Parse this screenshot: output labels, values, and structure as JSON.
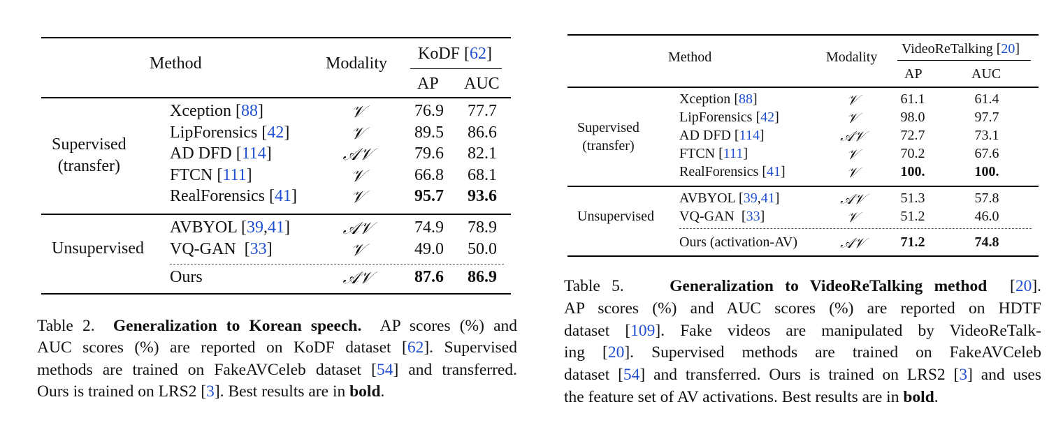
{
  "table2": {
    "header": {
      "method": "Method",
      "modality": "Modality",
      "dataset": "KoDF",
      "dataset_cite": "62",
      "ap": "AP",
      "auc": "AUC"
    },
    "groups": [
      {
        "label_line1": "Supervised",
        "label_line2": "(transfer)",
        "rows": [
          {
            "method": "Xception",
            "cites": "88",
            "modality": "V",
            "ap": "76.9",
            "auc": "77.7",
            "bold": false
          },
          {
            "method": "LipForensics",
            "cites": "42",
            "modality": "V",
            "ap": "89.5",
            "auc": "86.6",
            "bold": false
          },
          {
            "method": "AD DFD",
            "cites": "114",
            "modality": "AV",
            "ap": "79.6",
            "auc": "82.1",
            "bold": false
          },
          {
            "method": "FTCN",
            "cites": "111",
            "modality": "V",
            "ap": "66.8",
            "auc": "68.1",
            "bold": false
          },
          {
            "method": "RealForensics",
            "cites": "41",
            "modality": "V",
            "ap": "95.7",
            "auc": "93.6",
            "bold": true
          }
        ]
      },
      {
        "label_line1": "Unsupervised",
        "rows": [
          {
            "method": "AVBYOL",
            "cites": "39,41",
            "modality": "AV",
            "ap": "74.9",
            "auc": "78.9",
            "bold": false
          },
          {
            "method": "VQ-GAN",
            "cites": "33",
            "modality": "V",
            "ap": "49.0",
            "auc": "50.0",
            "bold": false
          },
          {
            "method": "Ours",
            "cites": "",
            "modality": "AV",
            "ap": "87.6",
            "auc": "86.9",
            "bold": true
          }
        ]
      }
    ],
    "caption": {
      "prefix": "Table 2.",
      "title": "Generalization to Korean speech.",
      "line1_tail": "AP scores (%) and",
      "line2": "AUC scores (%) are reported on KoDF dataset [",
      "line2_cite": "62",
      "line2_tail": "]. Supervised",
      "line3": "methods are trained on FakeAVCeleb dataset [",
      "line3_cite": "54",
      "line3_tail": "] and transferred.",
      "line4": "Ours is trained on LRS2 [",
      "line4_cite": "3",
      "line4_mid": "]. Best results are in ",
      "line4_bold": "bold",
      "line4_end": "."
    }
  },
  "table5": {
    "header": {
      "method": "Method",
      "modality": "Modality",
      "dataset": "VideoReTalking",
      "dataset_cite": "20",
      "ap": "AP",
      "auc": "AUC"
    },
    "groups": [
      {
        "label_line1": "Supervised",
        "label_line2": "(transfer)",
        "rows": [
          {
            "method": "Xception",
            "cites": "88",
            "modality": "V",
            "ap": "61.1",
            "auc": "61.4",
            "bold": false
          },
          {
            "method": "LipForensics",
            "cites": "42",
            "modality": "V",
            "ap": "98.0",
            "auc": "97.7",
            "bold": false
          },
          {
            "method": "AD DFD",
            "cites": "114",
            "modality": "AV",
            "ap": "72.7",
            "auc": "73.1",
            "bold": false
          },
          {
            "method": "FTCN",
            "cites": "111",
            "modality": "V",
            "ap": "70.2",
            "auc": "67.6",
            "bold": false
          },
          {
            "method": "RealForensics",
            "cites": "41",
            "modality": "V",
            "ap": "100.",
            "auc": "100.",
            "bold": true
          }
        ]
      },
      {
        "label_line1": "Unsupervised",
        "rows": [
          {
            "method": "AVBYOL",
            "cites": "39,41",
            "modality": "AV",
            "ap": "51.3",
            "auc": "57.8",
            "bold": false
          },
          {
            "method": "VQ-GAN",
            "cites": "33",
            "modality": "V",
            "ap": "51.2",
            "auc": "46.0",
            "bold": false
          },
          {
            "method": "Ours (activation-AV)",
            "cites": "",
            "modality": "AV",
            "ap": "71.2",
            "auc": "74.8",
            "bold": true
          }
        ]
      }
    ],
    "caption": {
      "prefix": "Table 5.",
      "title": "Generalization to VideoReTalking method",
      "title_cite": "20",
      "line2": "AP scores (%) and AUC scores (%) are reported on HDTF",
      "line3": "dataset [",
      "line3_cite": "109",
      "line3_tail": "]. Fake videos are manipulated by VideoReTalk-",
      "line4": "ing [",
      "line4_cite": "20",
      "line4_tail": "]. Supervised methods are trained on FakeAVCeleb",
      "line5": "dataset [",
      "line5_cite": "54",
      "line5_mid": "] and transferred. Ours is trained on LRS2 [",
      "line5_cite2": "3",
      "line5_tail": "] and uses",
      "line6": "the feature set of AV activations. Best results are in ",
      "line6_bold": "bold",
      "line6_end": "."
    }
  }
}
